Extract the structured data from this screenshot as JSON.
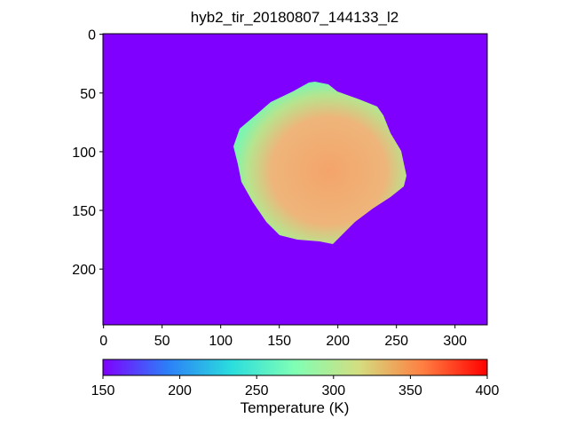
{
  "chart_data": {
    "type": "image",
    "title": "hyb2_tir_20180807_144133_l2",
    "xlim": [
      -0.5,
      327.5
    ],
    "ylim": [
      247.5,
      -0.5
    ],
    "xticks": [
      0,
      50,
      100,
      150,
      200,
      250,
      300
    ],
    "yticks": [
      0,
      50,
      100,
      150,
      200
    ],
    "background_color": "#8000ff",
    "colorbar": {
      "label": "Temperature (K)",
      "lim": [
        150,
        400
      ],
      "ticks": [
        150,
        200,
        250,
        300,
        350,
        400
      ],
      "colors": [
        "#8000ff",
        "#2c7ef8",
        "#2adddd",
        "#80ffb4",
        "#d4dd80",
        "#ff7e41",
        "#ff0000"
      ]
    }
  }
}
